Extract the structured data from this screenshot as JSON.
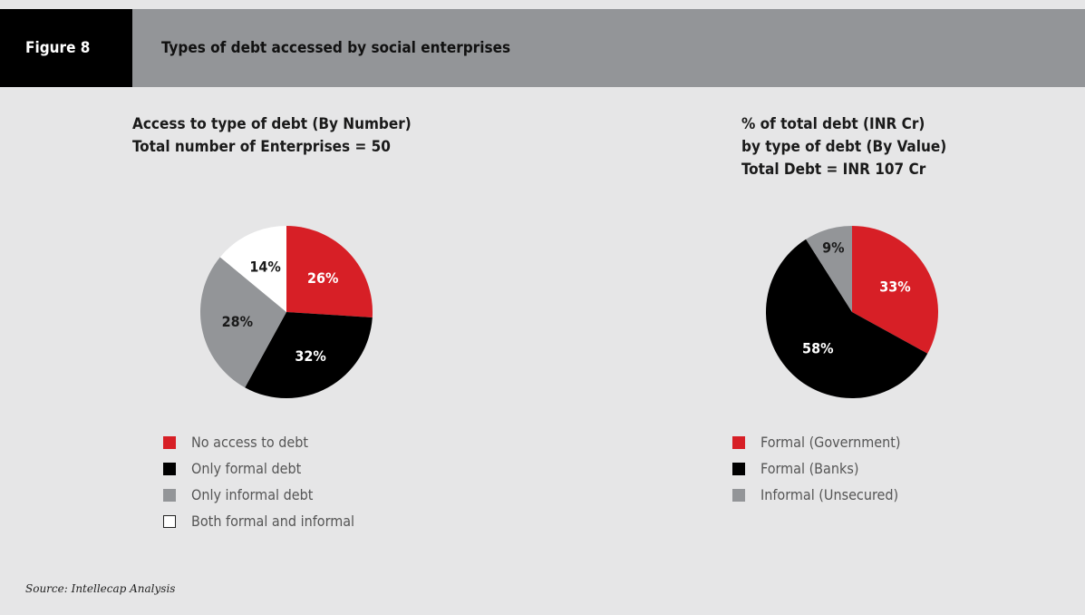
{
  "header": {
    "figure_label": "Figure 8",
    "title": "Types of debt accessed by social enterprises"
  },
  "source": "Source: Intellecap Analysis",
  "chart_data": [
    {
      "type": "pie",
      "title_lines": [
        "Access to type of debt (By Number)",
        "Total number of Enterprises = 50"
      ],
      "labels": [
        "No access to debt",
        "Only formal debt",
        "Only informal debt",
        "Both formal and informal"
      ],
      "values": [
        26,
        32,
        28,
        14
      ],
      "value_labels": [
        "26%",
        "32%",
        "28%",
        "14%"
      ],
      "colors": [
        "#d71f26",
        "#000000",
        "#939598",
        "#ffffff"
      ],
      "label_colors": [
        "#ffffff",
        "#ffffff",
        "#1a1a1a",
        "#1a1a1a"
      ],
      "legend_position": "bottom"
    },
    {
      "type": "pie",
      "title_lines": [
        "% of total debt (INR Cr)",
        "by type of debt (By Value)",
        "Total Debt = INR 107 Cr"
      ],
      "labels": [
        "Formal (Government)",
        "Formal (Banks)",
        "Informal (Unsecured)"
      ],
      "values": [
        33,
        58,
        9
      ],
      "value_labels": [
        "33%",
        "58%",
        "9%"
      ],
      "colors": [
        "#d71f26",
        "#000000",
        "#939598"
      ],
      "label_colors": [
        "#ffffff",
        "#ffffff",
        "#1a1a1a"
      ],
      "legend_position": "bottom"
    }
  ]
}
